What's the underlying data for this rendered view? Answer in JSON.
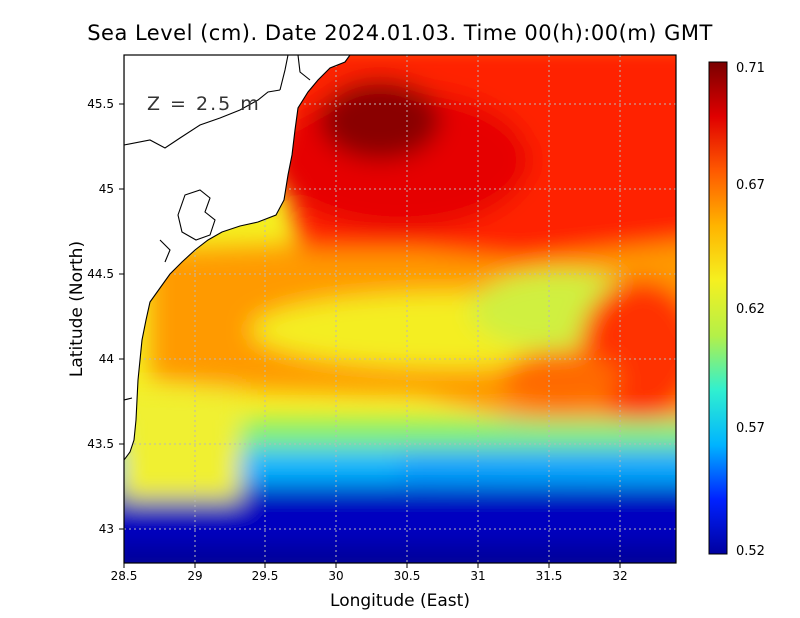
{
  "title": "Sea Level (cm). Date 2024.01.03. Time 00(h):00(m) GMT",
  "depth_label": "Z = 2.5 m",
  "x_axis": {
    "label": "Longitude (East)",
    "ticks": [
      "28.5",
      "29",
      "29.5",
      "30",
      "30.5",
      "31",
      "31.5",
      "32"
    ]
  },
  "y_axis": {
    "label": "Latitude (North)",
    "ticks": [
      "43",
      "43.5",
      "44",
      "44.5",
      "45",
      "45.5"
    ]
  },
  "colorbar": {
    "ticks": [
      "0.71",
      "0.67",
      "0.62",
      "0.57",
      "0.52"
    ],
    "min": 0.52,
    "max": 0.71,
    "colors": [
      "#0000a0",
      "#0022ff",
      "#00b4ff",
      "#30f0d0",
      "#b4f048",
      "#f5f020",
      "#ffb400",
      "#ff5a00",
      "#e00000",
      "#7a0000"
    ]
  },
  "chart_data": {
    "type": "heatmap",
    "title": "Sea Level (cm). Date 2024.01.03. Time 00(h):00(m) GMT",
    "xlabel": "Longitude (East)",
    "ylabel": "Latitude (North)",
    "xlim": [
      28.5,
      32.4
    ],
    "ylim": [
      42.8,
      45.8
    ],
    "clim": [
      0.52,
      0.71
    ],
    "annotation": "Z = 2.5 m",
    "features": [
      {
        "description": "maximum",
        "lon": 30.3,
        "lat": 45.5,
        "value": 0.71
      },
      {
        "description": "south band minimum",
        "lon": 30.0,
        "lat": 42.9,
        "value": 0.53
      },
      {
        "description": "eastern high",
        "lon": 32.2,
        "lat": 44.0,
        "value": 0.68
      }
    ]
  }
}
